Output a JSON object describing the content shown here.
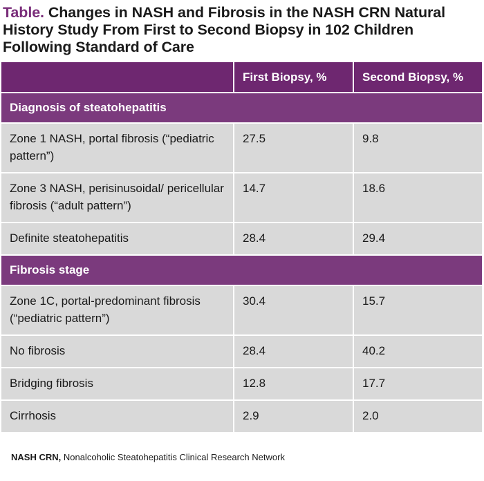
{
  "title": {
    "label": "Table.",
    "text": "Changes in NASH and Fibrosis in the NASH CRN Natural History Study From First to Second Biopsy in 102 Children Following Standard of Care"
  },
  "table": {
    "headers": [
      "",
      "First Biopsy, %",
      "Second Biopsy, %"
    ],
    "sections": [
      {
        "label": "Diagnosis of steatohepatitis",
        "rows": [
          {
            "label": "Zone 1 NASH, portal fibrosis (“pediatric pattern”)",
            "first": "27.5",
            "second": "9.8"
          },
          {
            "label": "Zone 3 NASH, perisinusoidal/ pericellular fibrosis (“adult pattern”)",
            "first": "14.7",
            "second": "18.6"
          },
          {
            "label": "Definite steatohepatitis",
            "first": "28.4",
            "second": "29.4"
          }
        ]
      },
      {
        "label": "Fibrosis stage",
        "rows": [
          {
            "label": "Zone 1C, portal-predominant fibrosis (“pediatric pattern”)",
            "first": "30.4",
            "second": "15.7"
          },
          {
            "label": "No fibrosis",
            "first": "28.4",
            "second": "40.2"
          },
          {
            "label": "Bridging fibrosis",
            "first": "12.8",
            "second": "17.7"
          },
          {
            "label": "Cirrhosis",
            "first": "2.9",
            "second": "2.0"
          }
        ]
      }
    ]
  },
  "footnote": {
    "abbr": "NASH CRN,",
    "text": " Nonalcoholic Steatohepatitis Clinical Research Network"
  },
  "colors": {
    "header": "#6e2770",
    "section": "#7b3a7d",
    "row": "#d9d9d9",
    "title_label": "#7a2d7a"
  }
}
